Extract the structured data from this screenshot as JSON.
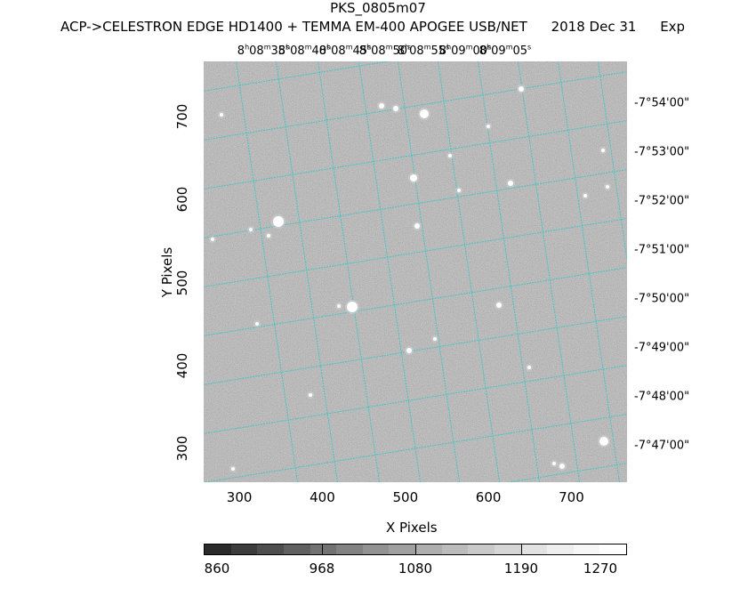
{
  "title": "PKS_0805m07",
  "subtitle": [
    "ACP->CELESTRON EDGE HD1400 + TEMMA EM-400 APOGEE USB/NET",
    "2018 Dec 31",
    "Exp"
  ],
  "x_axis": {
    "label": "X Pixels",
    "ticks": [
      "300",
      "400",
      "500",
      "600",
      "700"
    ],
    "range": [
      257,
      767
    ]
  },
  "y_axis": {
    "label": "Y Pixels",
    "ticks": [
      "300",
      "400",
      "500",
      "600",
      "700"
    ],
    "range": [
      259,
      767
    ]
  },
  "ra_labels": [
    {
      "h": "8",
      "m": "08",
      "s": "35"
    },
    {
      "h": "8",
      "m": "08",
      "s": "40"
    },
    {
      "h": "8",
      "m": "08",
      "s": "45"
    },
    {
      "h": "8",
      "m": "08",
      "s": "50"
    },
    {
      "h": "8",
      "m": "08",
      "s": "55"
    },
    {
      "h": "8",
      "m": "09",
      "s": "00"
    },
    {
      "h": "8",
      "m": "09",
      "s": "05"
    }
  ],
  "ra_units": {
    "h": "h",
    "m": "m",
    "s": "s"
  },
  "dec_labels": [
    "-7°54'00\"",
    "-7°53'00\"",
    "-7°52'00\"",
    "-7°51'00\"",
    "-7°50'00\"",
    "-7°49'00\"",
    "-7°48'00\"",
    "-7°47'00\""
  ],
  "colorbar": {
    "ticks": [
      "860",
      "968",
      "1080",
      "1190",
      "1270"
    ]
  },
  "colors": {
    "grid": "#2fc8c8",
    "background": "#ffffff"
  }
}
